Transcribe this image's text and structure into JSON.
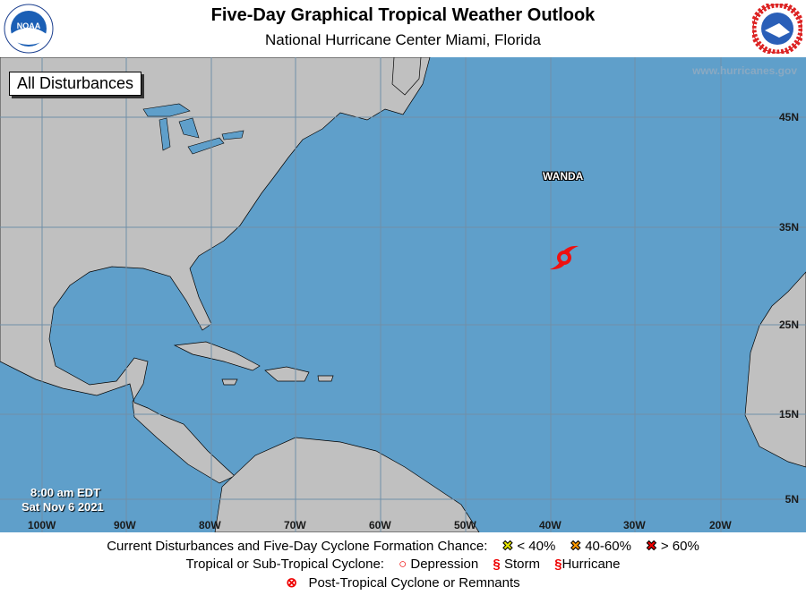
{
  "header": {
    "title": "Five-Day Graphical Tropical Weather Outlook",
    "subtitle": "National Hurricane Center  Miami, Florida"
  },
  "logos": {
    "left": "NOAA",
    "right": "NATIONAL WEATHER SERVICE"
  },
  "map": {
    "filter_label": "All Disturbances",
    "website": "www.hurricanes.gov",
    "time": "8:00 am EDT",
    "date": "Sat Nov 6 2021",
    "lat_labels": [
      "45N",
      "35N",
      "25N",
      "15N",
      "5N"
    ],
    "lon_labels": [
      "100W",
      "90W",
      "80W",
      "70W",
      "60W",
      "50W",
      "40W",
      "30W",
      "20W"
    ],
    "storm": {
      "name": "WANDA",
      "type": "storm",
      "icon": "tropical-storm-icon",
      "color": "#ee1111"
    },
    "colors": {
      "ocean": "#5f9fca",
      "land": "#c0c0c0"
    }
  },
  "legend": {
    "row1_label": "Current Disturbances and Five-Day Cyclone Formation Chance:",
    "low": {
      "label": "< 40%",
      "color": "#ffff00"
    },
    "mid": {
      "label": "40-60%",
      "color": "#ff9900"
    },
    "high": {
      "label": "> 60%",
      "color": "#ee0000"
    },
    "row2_label": "Tropical or Sub-Tropical Cyclone:",
    "depression": "Depression",
    "storm": "Storm",
    "hurricane": "Hurricane",
    "post_tropical": "Post-Tropical Cyclone or Remnants"
  }
}
